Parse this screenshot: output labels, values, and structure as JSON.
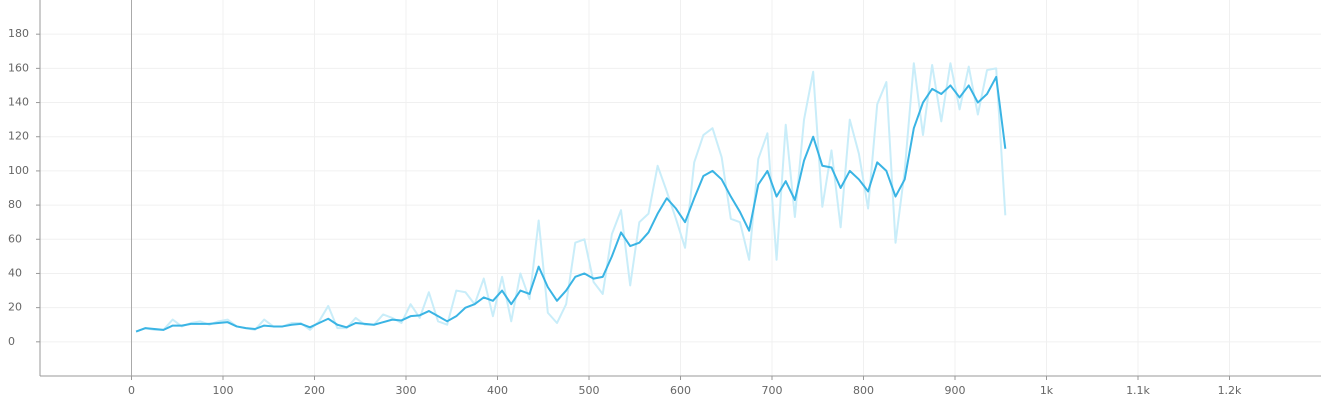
{
  "chart_data": {
    "type": "line",
    "x": [
      5,
      15,
      25,
      35,
      45,
      55,
      65,
      75,
      85,
      95,
      105,
      115,
      125,
      135,
      145,
      155,
      165,
      175,
      185,
      195,
      205,
      215,
      225,
      235,
      245,
      255,
      265,
      275,
      285,
      295,
      305,
      315,
      325,
      335,
      345,
      355,
      365,
      375,
      385,
      395,
      405,
      415,
      425,
      435,
      445,
      455,
      465,
      475,
      485,
      495,
      505,
      515,
      525,
      535,
      545,
      555,
      565,
      575,
      585,
      595,
      605,
      615,
      625,
      635,
      645,
      655,
      665,
      675,
      685,
      695,
      705,
      715,
      725,
      735,
      745,
      755,
      765,
      775,
      785,
      795,
      805,
      815,
      825,
      835,
      845,
      855,
      865,
      875,
      885,
      895,
      905,
      915,
      925,
      935,
      945,
      955
    ],
    "series": [
      {
        "color": "#c9edf9",
        "values": [
          6,
          8,
          7,
          7,
          13,
          9,
          11,
          12,
          10,
          12,
          13,
          9,
          8,
          7,
          13,
          9,
          9,
          11,
          11,
          7,
          12,
          21,
          8,
          8,
          14,
          10,
          10,
          16,
          14,
          11,
          22,
          14,
          29,
          12,
          10,
          30,
          29,
          22,
          37,
          15,
          38,
          12,
          40,
          25,
          71,
          17,
          11,
          22,
          58,
          60,
          35,
          28,
          63,
          77,
          33,
          70,
          75,
          103,
          88,
          72,
          55,
          105,
          121,
          125,
          108,
          72,
          70,
          48,
          107,
          122,
          48,
          127,
          73,
          130,
          158,
          79,
          112,
          67,
          130,
          110,
          78,
          139,
          152,
          58,
          100,
          163,
          121,
          162,
          129,
          163,
          136,
          161,
          133,
          159,
          160,
          74
        ]
      },
      {
        "color": "#3ab4e4",
        "values": [
          6,
          8,
          7.5,
          7,
          9.5,
          9.5,
          10.5,
          10.5,
          10.5,
          11,
          11.5,
          9,
          8,
          7.5,
          9.5,
          9,
          9,
          10,
          10.5,
          8.5,
          11,
          13.5,
          10,
          8.5,
          11,
          10.5,
          10,
          11.5,
          13,
          12.5,
          15,
          15.5,
          18,
          15,
          12,
          15,
          20,
          22,
          26,
          24,
          30,
          22,
          30,
          28,
          44,
          32,
          24,
          30,
          38,
          40,
          37,
          38,
          50,
          64,
          56,
          58,
          64,
          75,
          84,
          78,
          70,
          84,
          97,
          100,
          95,
          85,
          76,
          65,
          92,
          100,
          85,
          94,
          83,
          106,
          120,
          103,
          102,
          90,
          100,
          95,
          88,
          105,
          100,
          85,
          95,
          125,
          140,
          148,
          145,
          150,
          143,
          150,
          140,
          145,
          155,
          113
        ]
      }
    ],
    "xlim": [
      -100,
      1300
    ],
    "xticks": [
      0,
      100,
      200,
      300,
      400,
      500,
      600,
      700,
      800,
      900,
      {
        "value": 1000,
        "label": "1k"
      },
      {
        "value": 1100,
        "label": "1.1k"
      },
      {
        "value": 1200,
        "label": "1.2k"
      }
    ],
    "ylim": [
      -20,
      200
    ],
    "yticks": [
      0,
      20,
      40,
      60,
      80,
      100,
      120,
      140,
      160,
      180
    ],
    "grid": true
  }
}
